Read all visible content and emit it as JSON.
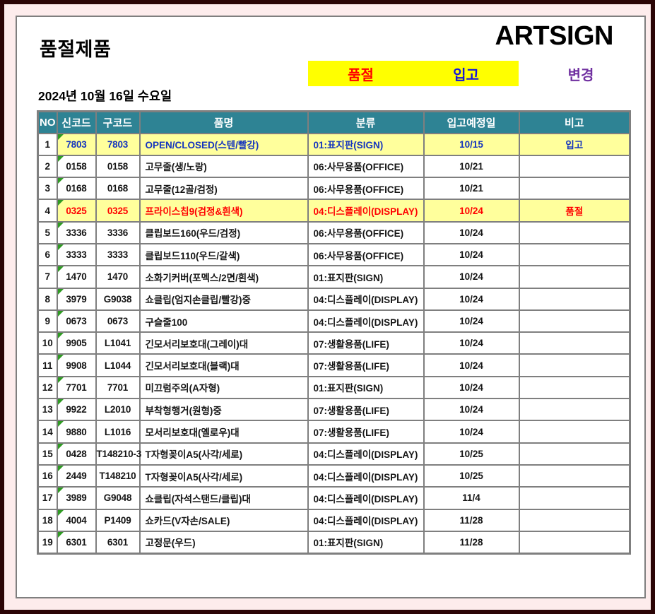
{
  "page": {
    "title": "품절제품",
    "logo": "ARTSIGN",
    "date": "2024년 10월 16일 수요일"
  },
  "legend": {
    "out_label": "품절",
    "in_label": "입고",
    "change_label": "변경",
    "colors": {
      "out_text": "#ff0000",
      "in_text": "#1414dc",
      "change_text": "#7030a0",
      "box_bg": "#ffff00"
    }
  },
  "colors": {
    "table_header_bg": "#2e8394",
    "row_highlight_bg": "#ffff9c",
    "highlight_blue_text": "#1434be",
    "highlight_red_text": "#ff0000",
    "grid_line": "#7f7f7f",
    "outer_border": "#2b0506",
    "page_margin_bg": "#fdecec",
    "error_indicator_green": "#2f9b23"
  },
  "table": {
    "columns": [
      "NO",
      "신코드",
      "구코드",
      "품명",
      "분류",
      "입고예정일",
      "비고"
    ],
    "rows": [
      {
        "no": "1",
        "new_code": "7803",
        "old_code": "7803",
        "name": "OPEN/CLOSED(스텐/빨강)",
        "category": "01:표지판(SIGN)",
        "due": "10/15",
        "note": "입고",
        "highlight": "in"
      },
      {
        "no": "2",
        "new_code": "0158",
        "old_code": "0158",
        "name": "고무줄(생/노랑)",
        "category": "06:사무용품(OFFICE)",
        "due": "10/21",
        "note": "",
        "highlight": "none"
      },
      {
        "no": "3",
        "new_code": "0168",
        "old_code": "0168",
        "name": "고무줄(12골/검정)",
        "category": "06:사무용품(OFFICE)",
        "due": "10/21",
        "note": "",
        "highlight": "none"
      },
      {
        "no": "4",
        "new_code": "0325",
        "old_code": "0325",
        "name": "프라이스칩9(검정&흰색)",
        "category": "04:디스플레이(DISPLAY)",
        "due": "10/24",
        "note": "품절",
        "highlight": "out"
      },
      {
        "no": "5",
        "new_code": "3336",
        "old_code": "3336",
        "name": "클립보드160(우드/검정)",
        "category": "06:사무용품(OFFICE)",
        "due": "10/24",
        "note": "",
        "highlight": "none"
      },
      {
        "no": "6",
        "new_code": "3333",
        "old_code": "3333",
        "name": "클립보드110(우드/갈색)",
        "category": "06:사무용품(OFFICE)",
        "due": "10/24",
        "note": "",
        "highlight": "none"
      },
      {
        "no": "7",
        "new_code": "1470",
        "old_code": "1470",
        "name": "소화기커버(포멕스/2면/흰색)",
        "category": "01:표지판(SIGN)",
        "due": "10/24",
        "note": "",
        "highlight": "none"
      },
      {
        "no": "8",
        "new_code": "3979",
        "old_code": "G9038",
        "name": "쇼클립(엄지손클립/빨강)중",
        "category": "04:디스플레이(DISPLAY)",
        "due": "10/24",
        "note": "",
        "highlight": "none"
      },
      {
        "no": "9",
        "new_code": "0673",
        "old_code": "0673",
        "name": "구슬줄100",
        "category": "04:디스플레이(DISPLAY)",
        "due": "10/24",
        "note": "",
        "highlight": "none"
      },
      {
        "no": "10",
        "new_code": "9905",
        "old_code": "L1041",
        "name": "긴모서리보호대(그레이)대",
        "category": "07:생활용품(LIFE)",
        "due": "10/24",
        "note": "",
        "highlight": "none"
      },
      {
        "no": "11",
        "new_code": "9908",
        "old_code": "L1044",
        "name": "긴모서리보호대(블랙)대",
        "category": "07:생활용품(LIFE)",
        "due": "10/24",
        "note": "",
        "highlight": "none"
      },
      {
        "no": "12",
        "new_code": "7701",
        "old_code": "7701",
        "name": "미끄럼주의(A자형)",
        "category": "01:표지판(SIGN)",
        "due": "10/24",
        "note": "",
        "highlight": "none"
      },
      {
        "no": "13",
        "new_code": "9922",
        "old_code": "L2010",
        "name": "부착형행거(원형)중",
        "category": "07:생활용품(LIFE)",
        "due": "10/24",
        "note": "",
        "highlight": "none"
      },
      {
        "no": "14",
        "new_code": "9880",
        "old_code": "L1016",
        "name": "모서리보호대(옐로우)대",
        "category": "07:생활용품(LIFE)",
        "due": "10/24",
        "note": "",
        "highlight": "none"
      },
      {
        "no": "15",
        "new_code": "0428",
        "old_code": "T148210-3",
        "name": "T자형꽂이A5(사각/세로)",
        "category": "04:디스플레이(DISPLAY)",
        "due": "10/25",
        "note": "",
        "highlight": "none"
      },
      {
        "no": "16",
        "new_code": "2449",
        "old_code": "T148210",
        "name": "T자형꽂이A5(사각/세로)",
        "category": "04:디스플레이(DISPLAY)",
        "due": "10/25",
        "note": "",
        "highlight": "none"
      },
      {
        "no": "17",
        "new_code": "3989",
        "old_code": "G9048",
        "name": "쇼클립(자석스탠드/클립)대",
        "category": "04:디스플레이(DISPLAY)",
        "due": "11/4",
        "note": "",
        "highlight": "none"
      },
      {
        "no": "18",
        "new_code": "4004",
        "old_code": "P1409",
        "name": "쇼카드(V자손/SALE)",
        "category": "04:디스플레이(DISPLAY)",
        "due": "11/28",
        "note": "",
        "highlight": "none"
      },
      {
        "no": "19",
        "new_code": "6301",
        "old_code": "6301",
        "name": "고정문(우드)",
        "category": "01:표지판(SIGN)",
        "due": "11/28",
        "note": "",
        "highlight": "none"
      }
    ]
  }
}
